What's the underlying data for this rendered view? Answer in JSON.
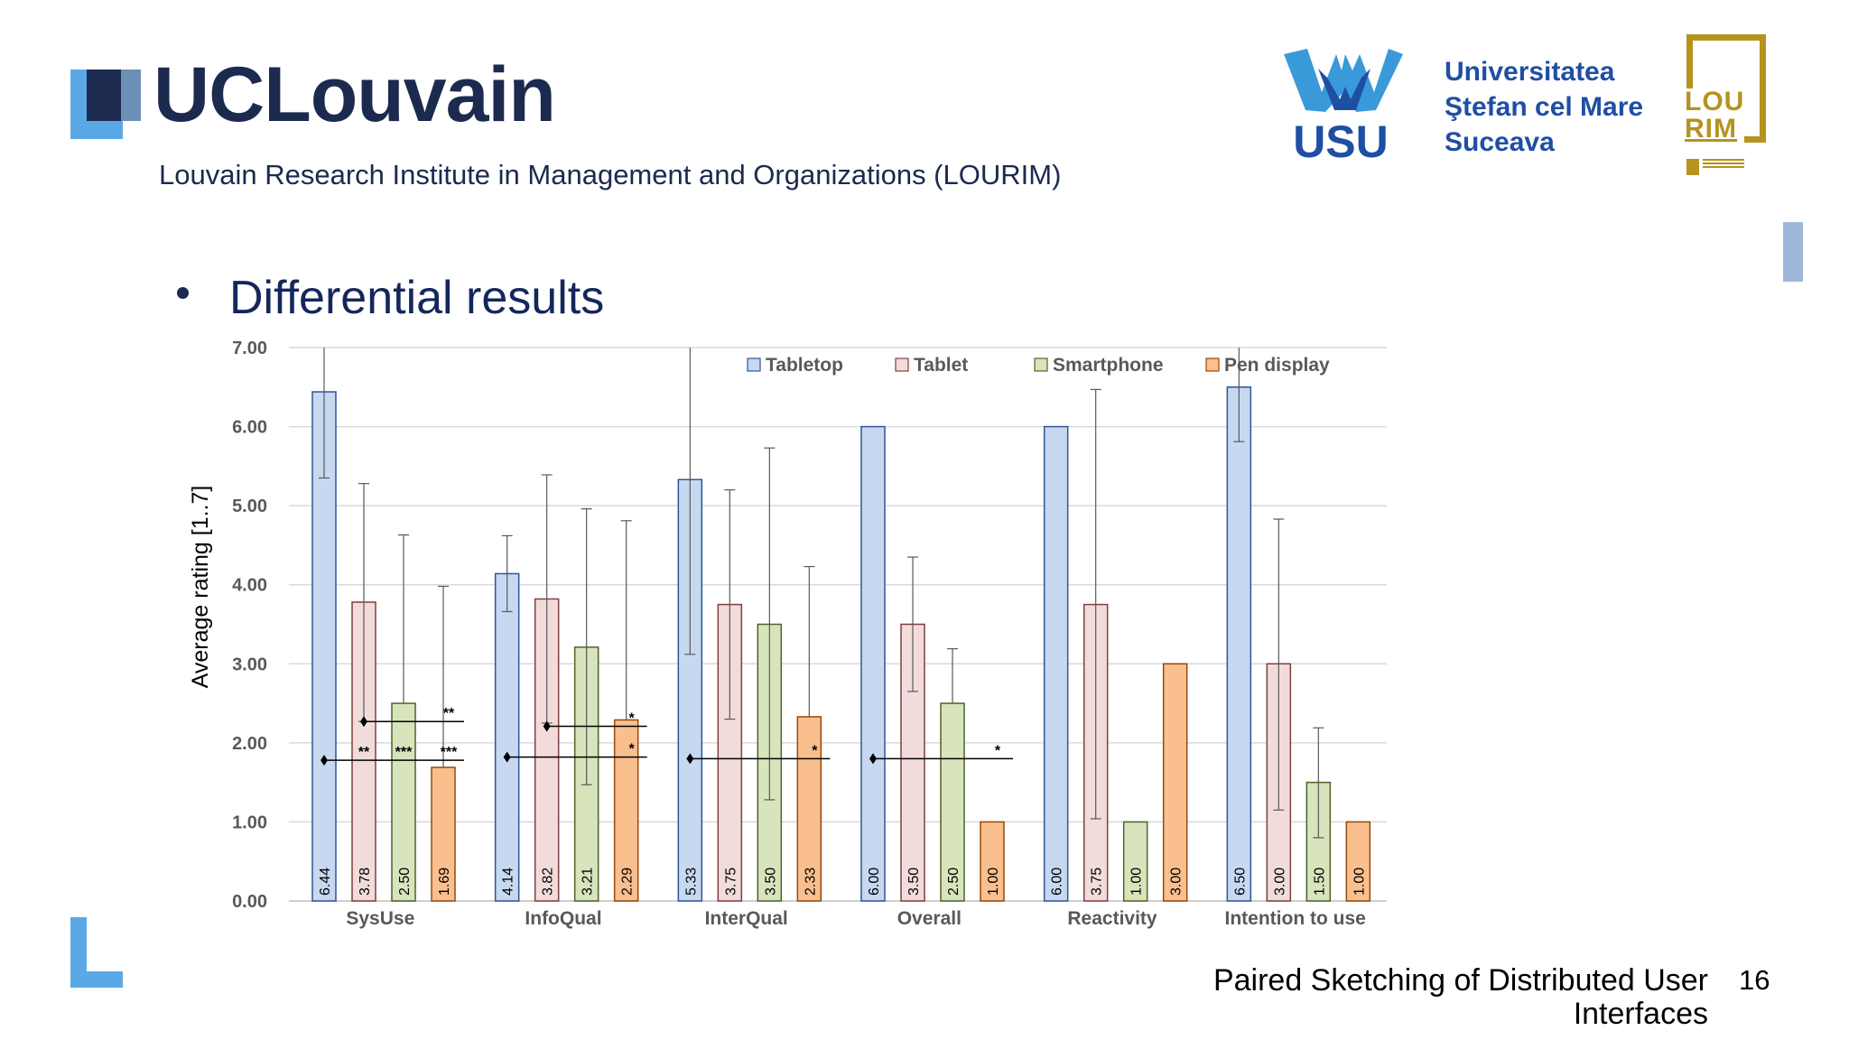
{
  "header": {
    "institution": "UCLouvain",
    "subtitle": "Louvain Research Institute in Management and Organizations (LOURIM)",
    "usu_abbrev": "USU",
    "usu_name": [
      "Universitatea",
      "Ştefan cel Mare",
      "Suceava"
    ],
    "lourim_logo": [
      "LOU",
      "RIM"
    ]
  },
  "slide": {
    "heading": "Differential results",
    "footer_title": "Paired Sketching of Distributed User Interfaces",
    "page_number": "16"
  },
  "colors": {
    "dark_blue": "#1b2a4e",
    "light_blue": "#5aa9e6",
    "usu_blue": "#1f4fa3",
    "lourim_gold": "#b5931e"
  },
  "chart_data": {
    "type": "bar",
    "ylabel": "Average rating [1..7]",
    "ylim": [
      0,
      7
    ],
    "yticks": [
      "0.00",
      "1.00",
      "2.00",
      "3.00",
      "4.00",
      "5.00",
      "6.00",
      "7.00"
    ],
    "grid": true,
    "legend_position": "top",
    "categories": [
      "SysUse",
      "InfoQual",
      "InterQual",
      "Overall",
      "Reactivity",
      "Intention to use"
    ],
    "series": [
      {
        "name": "Tabletop",
        "color": "#c6d9f1",
        "stroke": "#2f5597",
        "values": [
          6.44,
          4.14,
          5.33,
          6.0,
          6.0,
          6.5
        ],
        "labels": [
          "6.44",
          "4.14",
          "5.33",
          "6.00",
          "6.00",
          "6.50"
        ],
        "err_low": [
          5.35,
          3.66,
          3.12,
          null,
          null,
          5.81
        ],
        "err_high": [
          7.0,
          4.62,
          7.0,
          null,
          null,
          7.0
        ]
      },
      {
        "name": "Tablet",
        "color": "#f2dcdb",
        "stroke": "#7f3f3f",
        "values": [
          3.78,
          3.82,
          3.75,
          3.5,
          3.75,
          3.0
        ],
        "labels": [
          "3.78",
          "3.82",
          "3.75",
          "3.50",
          "3.75",
          "3.00"
        ],
        "err_low": [
          2.27,
          2.25,
          2.3,
          2.65,
          1.04,
          1.15
        ],
        "err_high": [
          5.28,
          5.39,
          5.2,
          4.35,
          6.47,
          4.83
        ]
      },
      {
        "name": "Smartphone",
        "color": "#d8e4bc",
        "stroke": "#4f6228",
        "values": [
          2.5,
          3.21,
          3.5,
          2.5,
          1.0,
          1.5
        ],
        "labels": [
          "2.50",
          "3.21",
          "3.50",
          "2.50",
          "1.00",
          "1.50"
        ],
        "err_low": [
          null,
          1.47,
          1.28,
          null,
          null,
          0.8
        ],
        "err_high": [
          4.63,
          4.96,
          5.73,
          3.19,
          null,
          2.19
        ]
      },
      {
        "name": "Pen display",
        "color": "#fabf8f",
        "stroke": "#984807",
        "values": [
          1.69,
          2.29,
          2.33,
          1.0,
          3.0,
          1.0
        ],
        "labels": [
          "1.69",
          "2.29",
          "2.33",
          "1.00",
          "3.00",
          "1.00"
        ],
        "err_low": [
          null,
          null,
          null,
          null,
          null,
          null
        ],
        "err_high": [
          3.98,
          4.81,
          4.23,
          null,
          null,
          null
        ]
      }
    ],
    "significance": [
      {
        "group": 0,
        "from_series": 0,
        "to_series": 3,
        "y": 1.78,
        "marks": [
          {
            "series": 1,
            "text": "**"
          },
          {
            "series": 2,
            "text": "***"
          },
          {
            "series": 3,
            "text": "***"
          }
        ]
      },
      {
        "group": 0,
        "from_series": 1,
        "to_series": 3,
        "y": 2.27,
        "marks": [
          {
            "series": 3,
            "text": "**"
          }
        ]
      },
      {
        "group": 1,
        "from_series": 0,
        "to_series": 3,
        "y": 1.82,
        "marks": [
          {
            "series": 3,
            "text": "*"
          }
        ]
      },
      {
        "group": 1,
        "from_series": 1,
        "to_series": 3,
        "y": 2.21,
        "marks": [
          {
            "series": 3,
            "text": "*"
          }
        ]
      },
      {
        "group": 2,
        "from_series": 0,
        "to_series": 3,
        "y": 1.8,
        "marks": [
          {
            "series": 3,
            "text": "*"
          }
        ]
      },
      {
        "group": 3,
        "from_series": 0,
        "to_series": 3,
        "y": 1.8,
        "marks": [
          {
            "series": 3,
            "text": "*"
          }
        ]
      }
    ]
  }
}
